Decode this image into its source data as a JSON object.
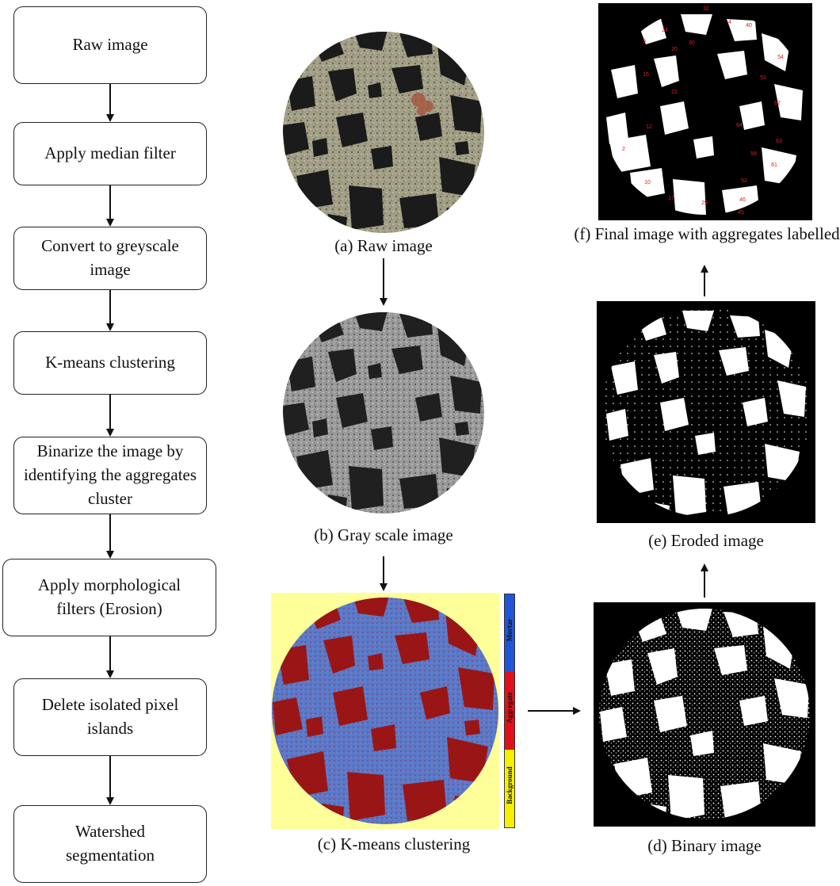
{
  "flow_steps": [
    "Raw image",
    "Apply median  filter",
    "Convert to greyscale image",
    "K-means clustering",
    "Binarize the image by identifying the aggregates cluster",
    "Apply morphological filters (Erosion)",
    "Delete isolated pixel islands",
    "Watershed segmentation"
  ],
  "captions": {
    "a": "(a) Raw image",
    "b": "(b) Gray scale image",
    "c": "(c) K-means clustering",
    "d": "(d) Binary image",
    "e": "(e) Eroded image",
    "f": "(f) Final image with aggregates labelled"
  },
  "legend": {
    "mortar": "Mortar",
    "aggregate": "Aggregate",
    "background": "Background",
    "colors": {
      "mortar": "#1f55d6",
      "aggregate": "#e0101a",
      "background": "#f5f000"
    }
  },
  "labels_f": [
    "32",
    "24",
    "9",
    "20",
    "30",
    "4",
    "40",
    "54",
    "16",
    "53",
    "22",
    "62",
    "12",
    "64",
    "2",
    "59",
    "63",
    "61",
    "10",
    "52",
    "17",
    "29",
    "46",
    "45"
  ],
  "colors": {
    "raw_bg": "#a29f86",
    "raw_agg": "#1b1b1b",
    "gray_bg": "#9a9a9a",
    "kmeans_bg": "#ffff99",
    "kmeans_mortar": "#5a79c8",
    "kmeans_agg": "#9a1616",
    "label_red": "#e02020"
  }
}
